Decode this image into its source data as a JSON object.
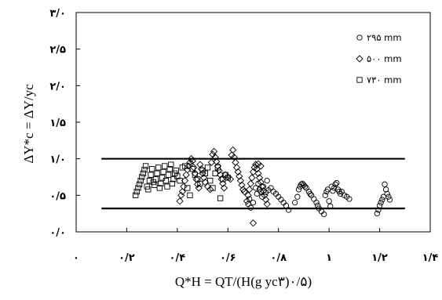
{
  "chart_data": {
    "type": "scatter",
    "xlabel": "Q*H = QT/(H(g yc۳)۰/۵)",
    "ylabel": "ΔY*c = ΔY/yc",
    "xlim": [
      0,
      1.4
    ],
    "ylim": [
      0,
      3.0
    ],
    "x_ticks": [
      0,
      0.2,
      0.4,
      0.6,
      0.8,
      1.0,
      1.2,
      1.4
    ],
    "x_tick_labels": [
      "۰",
      "۰/۲",
      "۰/۴",
      "۰/۶",
      "۰/۸",
      "۱",
      "۱/۲",
      "۱/۴"
    ],
    "y_ticks": [
      0,
      0.5,
      1.0,
      1.5,
      2.0,
      2.5,
      3.0
    ],
    "y_tick_labels": [
      "۰/۰",
      "۰/۵",
      "۱/۰",
      "۱/۵",
      "۲/۰",
      "۲/۵",
      "۳/۰"
    ],
    "legend_position": "top-right",
    "grid": false,
    "reference_lines": [
      {
        "y": 1.0,
        "x_range": [
          0.1,
          1.3
        ]
      },
      {
        "y": 0.32,
        "x_range": [
          0.1,
          1.3
        ]
      }
    ],
    "series": [
      {
        "name": "۲۹۵ mm",
        "marker": "circle",
        "points": [
          [
            0.68,
            0.38
          ],
          [
            0.685,
            0.45
          ],
          [
            0.69,
            0.33
          ],
          [
            0.7,
            0.4
          ],
          [
            0.71,
            0.6
          ],
          [
            0.715,
            0.52
          ],
          [
            0.72,
            0.66
          ],
          [
            0.725,
            0.58
          ],
          [
            0.73,
            0.55
          ],
          [
            0.735,
            0.48
          ],
          [
            0.74,
            0.62
          ],
          [
            0.75,
            0.54
          ],
          [
            0.755,
            0.7
          ],
          [
            0.76,
            0.57
          ],
          [
            0.77,
            0.6
          ],
          [
            0.78,
            0.55
          ],
          [
            0.79,
            0.52
          ],
          [
            0.8,
            0.48
          ],
          [
            0.81,
            0.44
          ],
          [
            0.82,
            0.4
          ],
          [
            0.83,
            0.36
          ],
          [
            0.84,
            0.3
          ],
          [
            0.865,
            0.4
          ],
          [
            0.875,
            0.48
          ],
          [
            0.88,
            0.58
          ],
          [
            0.885,
            0.62
          ],
          [
            0.89,
            0.65
          ],
          [
            0.895,
            0.66
          ],
          [
            0.9,
            0.64
          ],
          [
            0.905,
            0.62
          ],
          [
            0.91,
            0.6
          ],
          [
            0.92,
            0.55
          ],
          [
            0.925,
            0.52
          ],
          [
            0.93,
            0.5
          ],
          [
            0.94,
            0.45
          ],
          [
            0.95,
            0.4
          ],
          [
            0.955,
            0.36
          ],
          [
            0.96,
            0.32
          ],
          [
            0.97,
            0.28
          ],
          [
            0.98,
            0.24
          ],
          [
            0.985,
            0.5
          ],
          [
            0.99,
            0.55
          ],
          [
            0.995,
            0.58
          ],
          [
            1.0,
            0.42
          ],
          [
            1.005,
            0.35
          ],
          [
            1.01,
            0.62
          ],
          [
            1.015,
            0.56
          ],
          [
            1.02,
            0.6
          ],
          [
            1.025,
            0.65
          ],
          [
            1.03,
            0.67
          ],
          [
            1.035,
            0.58
          ],
          [
            1.04,
            0.55
          ],
          [
            1.045,
            0.52
          ],
          [
            1.05,
            0.55
          ],
          [
            1.06,
            0.5
          ],
          [
            1.07,
            0.48
          ],
          [
            1.08,
            0.45
          ],
          [
            1.19,
            0.25
          ],
          [
            1.195,
            0.3
          ],
          [
            1.2,
            0.36
          ],
          [
            1.205,
            0.4
          ],
          [
            1.21,
            0.44
          ],
          [
            1.215,
            0.48
          ],
          [
            1.22,
            0.65
          ],
          [
            1.225,
            0.58
          ],
          [
            1.23,
            0.52
          ],
          [
            1.235,
            0.48
          ],
          [
            1.24,
            0.44
          ]
        ]
      },
      {
        "name": "۵۰۰ mm",
        "marker": "diamond",
        "points": [
          [
            0.41,
            0.42
          ],
          [
            0.415,
            0.5
          ],
          [
            0.42,
            0.55
          ],
          [
            0.425,
            0.62
          ],
          [
            0.43,
            0.7
          ],
          [
            0.435,
            0.78
          ],
          [
            0.44,
            0.85
          ],
          [
            0.445,
            0.9
          ],
          [
            0.45,
            0.95
          ],
          [
            0.455,
            1.0
          ],
          [
            0.46,
            0.97
          ],
          [
            0.465,
            0.88
          ],
          [
            0.47,
            0.8
          ],
          [
            0.475,
            0.72
          ],
          [
            0.48,
            0.65
          ],
          [
            0.485,
            0.6
          ],
          [
            0.49,
            0.92
          ],
          [
            0.495,
            0.86
          ],
          [
            0.5,
            0.8
          ],
          [
            0.505,
            0.74
          ],
          [
            0.51,
            0.68
          ],
          [
            0.52,
            0.62
          ],
          [
            0.53,
            0.58
          ],
          [
            0.535,
            0.95
          ],
          [
            0.54,
            1.06
          ],
          [
            0.545,
            1.1
          ],
          [
            0.55,
            1.02
          ],
          [
            0.555,
            0.96
          ],
          [
            0.56,
            0.9
          ],
          [
            0.565,
            0.84
          ],
          [
            0.57,
            0.78
          ],
          [
            0.575,
            0.72
          ],
          [
            0.58,
            0.66
          ],
          [
            0.585,
            0.6
          ],
          [
            0.59,
            0.78
          ],
          [
            0.6,
            0.75
          ],
          [
            0.61,
            0.72
          ],
          [
            0.615,
            1.05
          ],
          [
            0.62,
            1.12
          ],
          [
            0.625,
            1.02
          ],
          [
            0.63,
            0.95
          ],
          [
            0.635,
            0.88
          ],
          [
            0.64,
            0.82
          ],
          [
            0.645,
            0.76
          ],
          [
            0.65,
            0.7
          ],
          [
            0.655,
            0.64
          ],
          [
            0.66,
            0.58
          ],
          [
            0.665,
            0.55
          ],
          [
            0.675,
            0.42
          ],
          [
            0.68,
            0.5
          ],
          [
            0.685,
            0.58
          ],
          [
            0.69,
            0.66
          ],
          [
            0.695,
            0.74
          ],
          [
            0.7,
            0.82
          ],
          [
            0.705,
            0.88
          ],
          [
            0.71,
            0.92
          ],
          [
            0.715,
            0.86
          ],
          [
            0.72,
            0.8
          ],
          [
            0.725,
            0.74
          ],
          [
            0.73,
            0.68
          ],
          [
            0.735,
            0.62
          ],
          [
            0.74,
            0.56
          ],
          [
            0.745,
            0.5
          ],
          [
            0.75,
            0.44
          ],
          [
            0.755,
            0.38
          ],
          [
            0.7,
            0.12
          ],
          [
            0.72,
            0.93
          ],
          [
            0.73,
            0.9
          ]
        ]
      },
      {
        "name": "۷۳۰ mm",
        "marker": "square",
        "points": [
          [
            0.235,
            0.5
          ],
          [
            0.24,
            0.55
          ],
          [
            0.245,
            0.6
          ],
          [
            0.25,
            0.65
          ],
          [
            0.255,
            0.7
          ],
          [
            0.26,
            0.75
          ],
          [
            0.265,
            0.8
          ],
          [
            0.27,
            0.85
          ],
          [
            0.275,
            0.9
          ],
          [
            0.28,
            0.62
          ],
          [
            0.285,
            0.58
          ],
          [
            0.29,
            0.7
          ],
          [
            0.295,
            0.78
          ],
          [
            0.3,
            0.86
          ],
          [
            0.305,
            0.68
          ],
          [
            0.31,
            0.64
          ],
          [
            0.315,
            0.72
          ],
          [
            0.32,
            0.8
          ],
          [
            0.325,
            0.88
          ],
          [
            0.33,
            0.6
          ],
          [
            0.335,
            0.66
          ],
          [
            0.34,
            0.74
          ],
          [
            0.345,
            0.82
          ],
          [
            0.35,
            0.9
          ],
          [
            0.355,
            0.7
          ],
          [
            0.36,
            0.62
          ],
          [
            0.365,
            0.78
          ],
          [
            0.37,
            0.86
          ],
          [
            0.375,
            0.92
          ],
          [
            0.38,
            0.66
          ],
          [
            0.385,
            0.72
          ],
          [
            0.39,
            0.8
          ],
          [
            0.395,
            0.84
          ],
          [
            0.4,
            0.76
          ],
          [
            0.41,
            0.7
          ],
          [
            0.42,
            0.88
          ],
          [
            0.43,
            0.9
          ],
          [
            0.44,
            0.6
          ],
          [
            0.45,
            0.5
          ],
          [
            0.46,
            0.86
          ],
          [
            0.47,
            0.78
          ],
          [
            0.48,
            0.72
          ],
          [
            0.49,
            0.66
          ],
          [
            0.5,
            0.84
          ],
          [
            0.51,
            0.8
          ],
          [
            0.52,
            0.88
          ],
          [
            0.53,
            0.7
          ],
          [
            0.54,
            0.6
          ],
          [
            0.55,
            0.8
          ],
          [
            0.56,
            0.88
          ],
          [
            0.57,
            0.46
          ],
          [
            0.58,
            0.72
          ],
          [
            0.59,
            0.78
          ],
          [
            0.6,
            0.74
          ]
        ]
      }
    ]
  }
}
